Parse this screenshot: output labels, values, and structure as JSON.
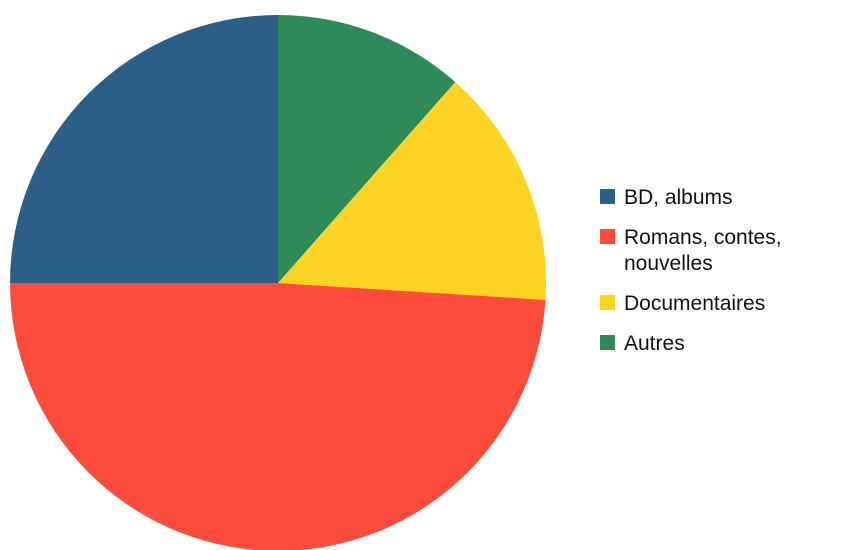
{
  "chart_data": {
    "type": "pie",
    "title": "",
    "legend_position": "right",
    "slices": [
      {
        "label": "BD, albums",
        "value": 25.0,
        "color": "#2c5f88"
      },
      {
        "label": "Romans, contes, nouvelles",
        "value": 49.0,
        "color": "#ff4b3c"
      },
      {
        "label": "Documentaires",
        "value": 14.5,
        "color": "#fdd324"
      },
      {
        "label": "Autres",
        "value": 11.5,
        "color": "#2e8b57"
      }
    ],
    "legend_lines": [
      [
        "BD, albums"
      ],
      [
        "Romans, contes,",
        "nouvelles"
      ],
      [
        "Documentaires"
      ],
      [
        "Autres"
      ]
    ]
  }
}
